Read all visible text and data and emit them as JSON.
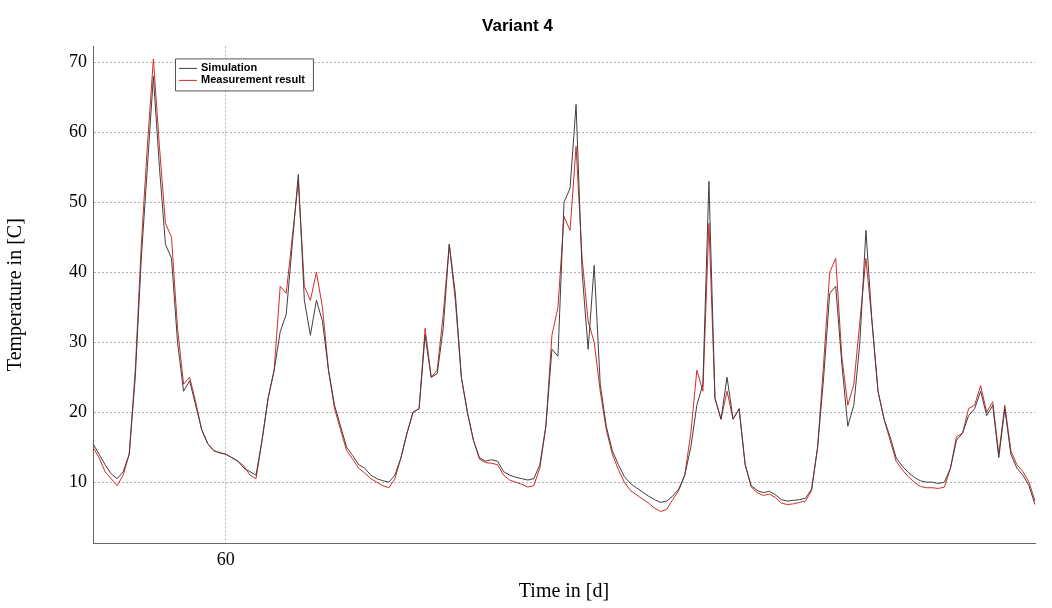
{
  "chart_data": {
    "type": "line",
    "title": "Variant 4",
    "xlabel": "Time in [d]",
    "ylabel": "Temperature in [C]",
    "categories": [
      null,
      null,
      null,
      null,
      null,
      null,
      null,
      null,
      null,
      null,
      null,
      null,
      null,
      null,
      null,
      null,
      null,
      null,
      null,
      null,
      null,
      null,
      "60",
      null,
      null,
      null,
      null,
      null,
      null,
      null,
      null,
      null,
      null,
      null,
      null,
      null,
      null,
      null,
      null,
      null,
      null,
      null,
      null,
      null,
      null,
      null,
      null,
      null,
      null,
      null,
      null,
      null,
      null,
      null,
      null,
      null,
      null,
      null,
      null,
      null,
      null,
      null,
      null,
      null,
      null,
      null,
      null,
      null,
      null,
      null,
      null,
      null,
      null,
      null,
      null,
      null,
      null,
      null,
      null,
      null,
      null,
      null,
      null,
      null,
      null,
      null,
      null,
      null,
      null,
      null,
      null,
      null,
      null,
      null,
      null,
      null,
      null,
      null,
      null,
      null,
      null,
      null,
      null,
      null,
      null,
      null,
      null,
      null,
      null,
      null,
      null,
      null,
      null,
      null,
      null,
      null,
      null,
      null,
      null,
      null,
      null,
      null,
      null,
      null,
      null,
      null,
      null,
      null,
      null,
      null,
      null,
      null,
      null,
      null,
      null,
      null,
      null,
      null,
      null,
      null,
      null,
      null,
      null,
      null,
      null,
      null,
      null,
      null,
      null,
      null,
      null,
      null,
      null,
      null,
      null,
      null,
      null
    ],
    "series": [
      {
        "name": "Simulation",
        "color": "#404040",
        "values": [
          15.5,
          14,
          12.5,
          11.2,
          10.5,
          11.5,
          14,
          25,
          42,
          55,
          68,
          55,
          44,
          42,
          30,
          23,
          24.5,
          21,
          17.5,
          15.5,
          14.5,
          14.2,
          14,
          13.5,
          13,
          12,
          11.5,
          11,
          16,
          22,
          26,
          31.5,
          34,
          44,
          54,
          36,
          31,
          36,
          33,
          26,
          21,
          18,
          15,
          13.8,
          12.5,
          12,
          11,
          10.5,
          10.2,
          10,
          11,
          13.5,
          17,
          20,
          20.5,
          31,
          25,
          25.5,
          32,
          44,
          37,
          25,
          20,
          16,
          13.5,
          13,
          13.2,
          13,
          11.5,
          11,
          10.7,
          10.5,
          10.3,
          10.5,
          12.5,
          18,
          29,
          28,
          50,
          52,
          64,
          40,
          29,
          41,
          24,
          18,
          14.5,
          12.5,
          10.8,
          9.8,
          9.2,
          8.6,
          8,
          7.5,
          7.1,
          7.3,
          8,
          9,
          11,
          15,
          21,
          24,
          53,
          22,
          19,
          25,
          19,
          20.5,
          12.5,
          9.5,
          8.8,
          8.5,
          8.7,
          8.2,
          7.5,
          7.3,
          7.4,
          7.5,
          7.7,
          9,
          15,
          25,
          37,
          38,
          27,
          18,
          21,
          30,
          46,
          33,
          23,
          19,
          16.5,
          13.5,
          12.3,
          11.4,
          10.7,
          10.2,
          10,
          10,
          9.8,
          10,
          12,
          16,
          17,
          19.5,
          20.5,
          23,
          19.5,
          21,
          13.5,
          20.5,
          14,
          12,
          11,
          9.5,
          6.8
        ]
      },
      {
        "name": "Measurement result",
        "color": "#d42a2a",
        "values": [
          15,
          13.5,
          11.5,
          10.5,
          9.5,
          11,
          14,
          26,
          44,
          58,
          70.5,
          58,
          47,
          45,
          32,
          24,
          25,
          21.5,
          17.5,
          15.5,
          14.5,
          14.2,
          14,
          13.5,
          13,
          12.3,
          11,
          10.5,
          16,
          22,
          26,
          38,
          37,
          45,
          53,
          38,
          36,
          40,
          35,
          26,
          20.5,
          17.5,
          14.5,
          13.3,
          12,
          11.3,
          10.5,
          10,
          9.5,
          9.2,
          10.5,
          13.5,
          17,
          20,
          20.5,
          32,
          25,
          26,
          34,
          44,
          36,
          25,
          20,
          16,
          13.3,
          12.8,
          12.7,
          12.5,
          11,
          10.3,
          10,
          9.7,
          9.3,
          9.5,
          12,
          18,
          31,
          35,
          48,
          46,
          58,
          42,
          33,
          30,
          23,
          17.5,
          14,
          11.8,
          10,
          8.8,
          8.2,
          7.6,
          7,
          6.3,
          5.8,
          6.1,
          7.5,
          8.8,
          11,
          17,
          26,
          23,
          47,
          22,
          19,
          23,
          19,
          20.5,
          12.5,
          9.3,
          8.5,
          8.1,
          8.3,
          7.8,
          7,
          6.8,
          6.9,
          7.1,
          7.3,
          8.8,
          15,
          27,
          40,
          42,
          28,
          21,
          24,
          33,
          42,
          33,
          23,
          19,
          16,
          13,
          11.8,
          10.8,
          10,
          9.4,
          9.2,
          9.2,
          9.1,
          9.3,
          12,
          16.5,
          17,
          20.5,
          21,
          23.8,
          20,
          21.5,
          14,
          21,
          14.5,
          12.5,
          11.5,
          10,
          7.3
        ]
      }
    ],
    "ylim": [
      1.3,
      72.3
    ],
    "yticks": [
      10,
      20,
      30,
      40,
      50,
      60,
      70
    ],
    "grid": true,
    "legend": "top left",
    "marker": "none"
  }
}
